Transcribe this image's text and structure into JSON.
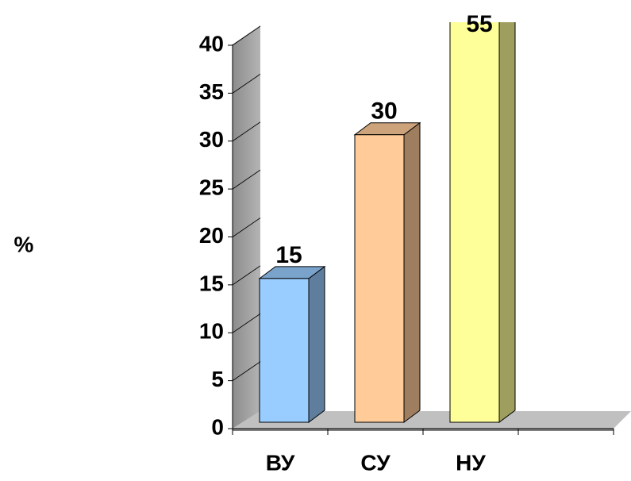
{
  "chart_data": {
    "type": "bar3d",
    "y_label": "%",
    "categories": [
      "ВУ",
      "СУ",
      "НУ"
    ],
    "values": [
      15,
      30,
      55
    ],
    "colors": [
      "#99ccff",
      "#ffcc99",
      "#ffff99"
    ],
    "ylim": [
      0,
      40
    ],
    "yticks": [
      0,
      5,
      10,
      15,
      20,
      25,
      30,
      35,
      40
    ],
    "grid": true
  }
}
